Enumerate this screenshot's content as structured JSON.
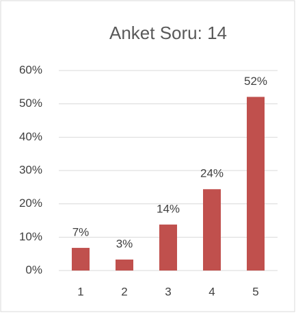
{
  "chart_data": {
    "type": "bar",
    "title": "Anket Soru: 14",
    "categories": [
      "1",
      "2",
      "3",
      "4",
      "5"
    ],
    "values": [
      6.8,
      3.3,
      13.8,
      24.4,
      52.1
    ],
    "value_labels": [
      "7%",
      "3%",
      "14%",
      "24%",
      "52%"
    ],
    "color": "#c0504d",
    "ylim": [
      0,
      60
    ],
    "yticks": [
      {
        "value": 0,
        "label": "0%"
      },
      {
        "value": 10,
        "label": "10%"
      },
      {
        "value": 20,
        "label": "20%"
      },
      {
        "value": 30,
        "label": "30%"
      },
      {
        "value": 40,
        "label": "40%"
      },
      {
        "value": 50,
        "label": "50%"
      },
      {
        "value": 60,
        "label": "60%"
      }
    ],
    "grid": true
  }
}
